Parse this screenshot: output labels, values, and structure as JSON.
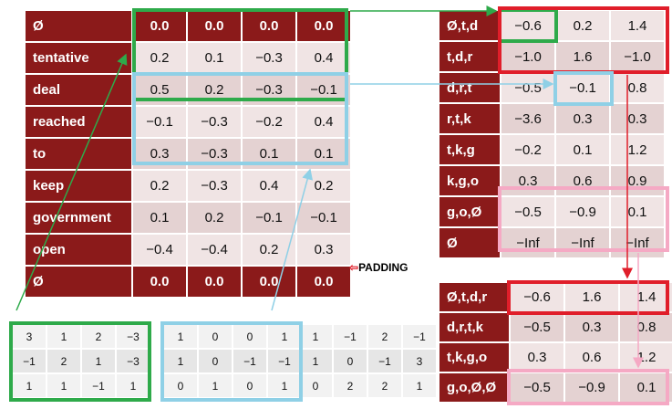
{
  "main_table": {
    "rows": [
      {
        "word": "Ø",
        "values": [
          "0.0",
          "0.0",
          "0.0",
          "0.0"
        ],
        "padding": true
      },
      {
        "word": "tentative",
        "values": [
          "0.2",
          "0.1",
          "−0.3",
          "0.4"
        ]
      },
      {
        "word": "deal",
        "values": [
          "0.5",
          "0.2",
          "−0.3",
          "−0.1"
        ]
      },
      {
        "word": "reached",
        "values": [
          "−0.1",
          "−0.3",
          "−0.2",
          "0.4"
        ]
      },
      {
        "word": "to",
        "values": [
          "0.3",
          "−0.3",
          "0.1",
          "0.1"
        ]
      },
      {
        "word": "keep",
        "values": [
          "0.2",
          "−0.3",
          "0.4",
          "0.2"
        ]
      },
      {
        "word": "government",
        "values": [
          "0.1",
          "0.2",
          "−0.1",
          "−0.1"
        ]
      },
      {
        "word": "open",
        "values": [
          "−0.4",
          "−0.4",
          "0.2",
          "0.3"
        ]
      },
      {
        "word": "Ø",
        "values": [
          "0.0",
          "0.0",
          "0.0",
          "0.0"
        ],
        "padding": true
      }
    ]
  },
  "padding_label": "PADDING",
  "filters": [
    {
      "color": "#2eaa4a",
      "rows": [
        [
          "3",
          "1",
          "2",
          "−3"
        ],
        [
          "−1",
          "2",
          "1",
          "−3"
        ],
        [
          "1",
          "1",
          "−1",
          "1"
        ]
      ]
    },
    {
      "color": "#8fd0e6",
      "rows": [
        [
          "1",
          "0",
          "0",
          "1"
        ],
        [
          "1",
          "0",
          "−1",
          "−1"
        ],
        [
          "0",
          "1",
          "0",
          "1"
        ]
      ]
    },
    {
      "color": "none",
      "rows": [
        [
          "1",
          "−1",
          "2",
          "−1"
        ],
        [
          "1",
          "0",
          "−1",
          "3"
        ],
        [
          "0",
          "2",
          "2",
          "1"
        ]
      ]
    }
  ],
  "conv_table": {
    "rows": [
      {
        "label": "Ø,t,d",
        "values": [
          "−0.6",
          "0.2",
          "1.4"
        ]
      },
      {
        "label": "t,d,r",
        "values": [
          "−1.0",
          "1.6",
          "−1.0"
        ]
      },
      {
        "label": "d,r,t",
        "values": [
          "−0.5",
          "−0.1",
          "0.8"
        ]
      },
      {
        "label": "r,t,k",
        "values": [
          "−3.6",
          "0.3",
          "0.3"
        ]
      },
      {
        "label": "t,k,g",
        "values": [
          "−0.2",
          "0.1",
          "1.2"
        ]
      },
      {
        "label": "k,g,o",
        "values": [
          "0.3",
          "0.6",
          "0.9"
        ]
      },
      {
        "label": "g,o,Ø",
        "values": [
          "−0.5",
          "−0.9",
          "0.1"
        ]
      },
      {
        "label": "Ø",
        "values": [
          "−Inf",
          "−Inf",
          "−Inf"
        ]
      }
    ]
  },
  "pool_table": {
    "rows": [
      {
        "label": "Ø,t,d,r",
        "values": [
          "−0.6",
          "1.6",
          "1.4"
        ]
      },
      {
        "label": "d,r,t,k",
        "values": [
          "−0.5",
          "0.3",
          "0.8"
        ]
      },
      {
        "label": "t,k,g,o",
        "values": [
          "0.3",
          "0.6",
          "1.2"
        ]
      },
      {
        "label": "g,o,Ø,Ø",
        "values": [
          "−0.5",
          "−0.9",
          "0.1"
        ]
      }
    ]
  },
  "colors": {
    "green": "#2eaa4a",
    "blue": "#8fd0e6",
    "red": "#e01e2a",
    "pink": "#f5a9c4",
    "maroon": "#8b1a1a"
  }
}
